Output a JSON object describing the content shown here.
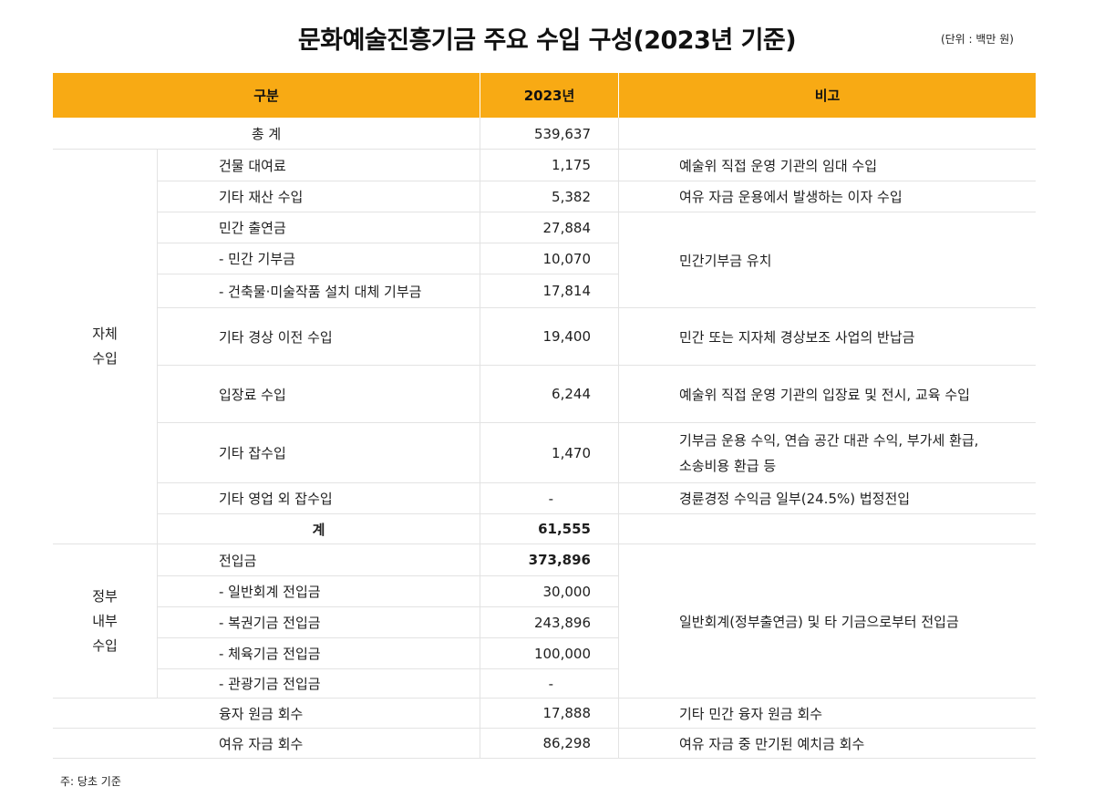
{
  "title": "문화예술진흥기금 주요 수입 구성(2023년 기준)",
  "unit_note": "(단위 : 백만 원)",
  "footnote": "주: 당초 기준",
  "header": {
    "category": "구분",
    "year": "2023년",
    "remarks": "비고"
  },
  "total": {
    "label": "총 계",
    "value": "539,637"
  },
  "self_income": {
    "group_label": "자체\n수입",
    "rows": [
      {
        "label": "건물 대여료",
        "value": "1,175"
      },
      {
        "label": "기타 재산 수입",
        "value": "5,382"
      },
      {
        "label": "민간 출연금",
        "value": "27,884"
      },
      {
        "label": "- 민간 기부금",
        "value": "10,070"
      },
      {
        "label": "- 건축물·미술작품 설치 대체 기부금",
        "value": "17,814"
      },
      {
        "label": "기타 경상 이전 수입",
        "value": "19,400"
      },
      {
        "label": "입장료 수입",
        "value": "6,244"
      },
      {
        "label": "기타 잡수입",
        "value": "1,470"
      },
      {
        "label": "기타 영업 외 잡수입",
        "value": "-"
      }
    ],
    "remarks": [
      "예술위 직접 운영 기관의 임대 수입",
      "여유 자금 운용에서 발생하는 이자 수입",
      "민간기부금 유치",
      "민간 또는 지자체 경상보조 사업의 반납금",
      "예술위 직접 운영 기관의 입장료 및 전시, 교육 수입",
      "기부금 운용 수익, 연습 공간 대관 수익, 부가세 환급,\n소송비용 환급 등",
      "경륜경정 수익금 일부(24.5%) 법정전입"
    ],
    "subtotal": {
      "label": "계",
      "value": "61,555"
    }
  },
  "gov_internal": {
    "group_label": "정부\n내부\n수입",
    "rows": [
      {
        "label": "전입금",
        "value": "373,896"
      },
      {
        "label": "- 일반회계 전입금",
        "value": "30,000"
      },
      {
        "label": "- 복권기금 전입금",
        "value": "243,896"
      },
      {
        "label": "- 체육기금 전입금",
        "value": "100,000"
      },
      {
        "label": "- 관광기금 전입금",
        "value": "-"
      }
    ],
    "remark": "일반회계(정부출연금) 및 타 기금으로부터 전입금"
  },
  "loan_recovery": {
    "label": "융자 원금 회수",
    "value": "17,888",
    "remark": "기타 민간 융자 원금 회수"
  },
  "surplus_recovery": {
    "label": "여유 자금 회수",
    "value": "86,298",
    "remark": "여유 자금 중 만기된 예치금 회수"
  },
  "colors": {
    "header_bg": "#f8aa14",
    "grid": "#e3e3e3"
  }
}
